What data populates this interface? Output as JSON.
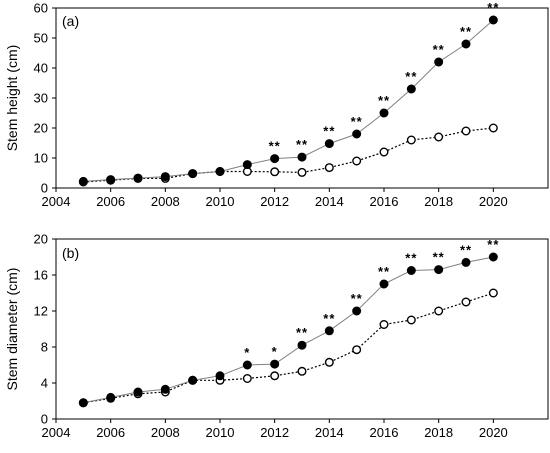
{
  "chart_data": [
    {
      "type": "line",
      "panel_label": "(a)",
      "xlabel": "",
      "ylabel": "Stem height (cm)",
      "xlim": [
        2004,
        2022
      ],
      "ylim": [
        0,
        60
      ],
      "xticks": [
        2004,
        2006,
        2008,
        2010,
        2012,
        2014,
        2016,
        2018,
        2020
      ],
      "xtick_labels": [
        "2004",
        "2006",
        "2008",
        "2010",
        "2012",
        "2014",
        "2016",
        "2018",
        "2020"
      ],
      "yticks": [
        0,
        10,
        20,
        30,
        40,
        50,
        60
      ],
      "ytick_labels": [
        "0",
        "10",
        "20",
        "30",
        "40",
        "50",
        "60"
      ],
      "grid": false,
      "series": [
        {
          "marker": "filled-circle",
          "line_style": "solid",
          "color": "#000000",
          "line_color": "#808080",
          "x": [
            2005,
            2006,
            2007,
            2008,
            2009,
            2010,
            2011,
            2012,
            2013,
            2014,
            2015,
            2016,
            2017,
            2018,
            2019,
            2020
          ],
          "values": [
            2.2,
            2.8,
            3.3,
            3.8,
            4.8,
            5.5,
            7.8,
            9.8,
            10.3,
            14.8,
            18.0,
            25.0,
            33.0,
            42.0,
            48.0,
            56.0
          ]
        },
        {
          "marker": "open-circle",
          "line_style": "dotted",
          "color": "#000000",
          "line_color": "#000000",
          "x": [
            2005,
            2006,
            2007,
            2008,
            2009,
            2010,
            2011,
            2012,
            2013,
            2014,
            2015,
            2016,
            2017,
            2018,
            2019,
            2020
          ],
          "values": [
            2.0,
            2.6,
            3.2,
            3.2,
            4.8,
            5.5,
            5.5,
            5.4,
            5.2,
            6.8,
            9.0,
            12.0,
            16.0,
            17.0,
            19.0,
            20.0
          ]
        }
      ],
      "annotations": [
        {
          "x": 2012,
          "y": 9.8,
          "text": "**"
        },
        {
          "x": 2013,
          "y": 10.3,
          "text": "**"
        },
        {
          "x": 2014,
          "y": 14.8,
          "text": "**"
        },
        {
          "x": 2015,
          "y": 18.0,
          "text": "**"
        },
        {
          "x": 2016,
          "y": 25.0,
          "text": "**"
        },
        {
          "x": 2017,
          "y": 33.0,
          "text": "**"
        },
        {
          "x": 2018,
          "y": 42.0,
          "text": "**"
        },
        {
          "x": 2019,
          "y": 48.0,
          "text": "**"
        },
        {
          "x": 2020,
          "y": 56.0,
          "text": "**"
        }
      ]
    },
    {
      "type": "line",
      "panel_label": "(b)",
      "xlabel": "",
      "ylabel": "Stem diameter (cm)",
      "xlim": [
        2004,
        2022
      ],
      "ylim": [
        0,
        20
      ],
      "xticks": [
        2004,
        2006,
        2008,
        2010,
        2012,
        2014,
        2016,
        2018,
        2020
      ],
      "xtick_labels": [
        "2004",
        "2006",
        "2008",
        "2010",
        "2012",
        "2014",
        "2016",
        "2018",
        "2020"
      ],
      "yticks": [
        0,
        4,
        8,
        12,
        16,
        20
      ],
      "ytick_labels": [
        "0",
        "4",
        "8",
        "12",
        "16",
        "20"
      ],
      "grid": false,
      "series": [
        {
          "marker": "filled-circle",
          "line_style": "solid",
          "color": "#000000",
          "line_color": "#808080",
          "x": [
            2005,
            2006,
            2007,
            2008,
            2009,
            2010,
            2011,
            2012,
            2013,
            2014,
            2015,
            2016,
            2017,
            2018,
            2019,
            2020
          ],
          "values": [
            1.8,
            2.4,
            3.0,
            3.3,
            4.3,
            4.8,
            6.0,
            6.1,
            8.2,
            9.8,
            12.0,
            15.0,
            16.5,
            16.6,
            17.4,
            18.0
          ]
        },
        {
          "marker": "open-circle",
          "line_style": "dotted",
          "color": "#000000",
          "line_color": "#000000",
          "x": [
            2005,
            2006,
            2007,
            2008,
            2009,
            2010,
            2011,
            2012,
            2013,
            2014,
            2015,
            2016,
            2017,
            2018,
            2019,
            2020
          ],
          "values": [
            1.8,
            2.3,
            2.8,
            3.0,
            4.3,
            4.3,
            4.5,
            4.8,
            5.3,
            6.3,
            7.7,
            10.5,
            11.0,
            12.0,
            13.0,
            14.0
          ]
        }
      ],
      "annotations": [
        {
          "x": 2011,
          "y": 6.0,
          "text": "*"
        },
        {
          "x": 2012,
          "y": 6.1,
          "text": "*"
        },
        {
          "x": 2013,
          "y": 8.2,
          "text": "**"
        },
        {
          "x": 2014,
          "y": 9.8,
          "text": "**"
        },
        {
          "x": 2015,
          "y": 12.0,
          "text": "**"
        },
        {
          "x": 2016,
          "y": 15.0,
          "text": "**"
        },
        {
          "x": 2017,
          "y": 16.5,
          "text": "**"
        },
        {
          "x": 2018,
          "y": 16.6,
          "text": "**"
        },
        {
          "x": 2019,
          "y": 17.4,
          "text": "**"
        },
        {
          "x": 2020,
          "y": 18.0,
          "text": "**"
        }
      ]
    }
  ]
}
